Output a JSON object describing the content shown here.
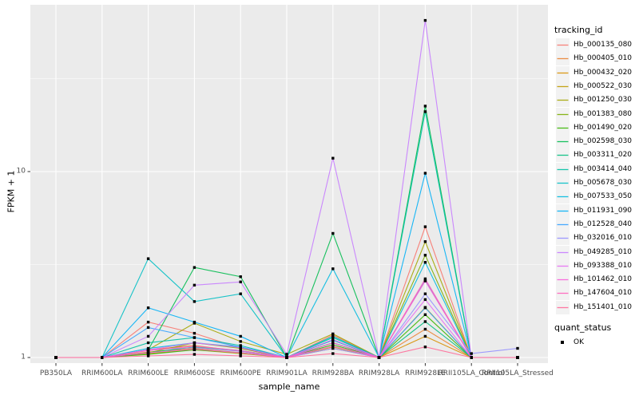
{
  "chart_data": {
    "type": "line",
    "title": "",
    "xlabel": "sample_name",
    "ylabel": "FPKM + 1",
    "y_scale": "log10",
    "ylim": [
      0.93,
      80
    ],
    "y_ticks": [
      {
        "label": "1",
        "value": 1
      },
      {
        "label": "10",
        "value": 10
      }
    ],
    "y_minor_gridlines": [
      3.162,
      31.62
    ],
    "grid": "on",
    "legend_position": "right",
    "categories": [
      "PB350LA",
      "RRIM600LA",
      "RRIM600LE",
      "RRIM600SE",
      "RRIM600PE",
      "RRIM901LA",
      "RRIM928BA",
      "RRIM928LA",
      "RRIM928LE",
      "RRII105LA_Control",
      "RRII105LA_Stressed"
    ],
    "series": [
      {
        "name": "Hb_000135_080",
        "color": "#F8766D",
        "values": [
          1,
          1,
          1.55,
          1.35,
          1.12,
          1,
          1.32,
          1,
          5.05,
          1,
          1
        ]
      },
      {
        "name": "Hb_000405_010",
        "color": "#EA8331",
        "values": [
          1,
          1,
          1.1,
          1.16,
          1.08,
          1,
          1.12,
          1,
          1.42,
          1,
          1
        ]
      },
      {
        "name": "Hb_000432_020",
        "color": "#D89000",
        "values": [
          1,
          1,
          1.07,
          1.12,
          1.06,
          1,
          1.2,
          1,
          1.3,
          1,
          1
        ]
      },
      {
        "name": "Hb_000522_030",
        "color": "#C09B00",
        "values": [
          1,
          1,
          1.05,
          1.1,
          1.05,
          1,
          1.14,
          1,
          1.86,
          1,
          1
        ]
      },
      {
        "name": "Hb_001250_030",
        "color": "#A3A500",
        "values": [
          1,
          1,
          1.1,
          1.53,
          1.22,
          1.04,
          1.34,
          1,
          4.2,
          1,
          1
        ]
      },
      {
        "name": "Hb_001383_080",
        "color": "#7CAE00",
        "values": [
          1,
          1,
          1.06,
          1.2,
          1.12,
          1,
          1.24,
          1,
          3.55,
          1,
          1
        ]
      },
      {
        "name": "Hb_001490_020",
        "color": "#39B600",
        "values": [
          1,
          1,
          1.04,
          1.1,
          1.06,
          1,
          1.17,
          1,
          1.7,
          1,
          1
        ]
      },
      {
        "name": "Hb_002598_030",
        "color": "#00BB4E",
        "values": [
          1,
          1,
          1.1,
          3.05,
          2.72,
          1,
          4.65,
          1,
          22.5,
          1,
          1
        ]
      },
      {
        "name": "Hb_003311_020",
        "color": "#00BF7D",
        "values": [
          1,
          1,
          1.06,
          1.14,
          1.09,
          1,
          1.2,
          1,
          1.56,
          1,
          1
        ]
      },
      {
        "name": "Hb_003414_040",
        "color": "#00C1A3",
        "values": [
          1,
          1,
          1.2,
          1.28,
          1.16,
          1,
          1.28,
          1,
          21.0,
          1,
          1
        ]
      },
      {
        "name": "Hb_005678_030",
        "color": "#00BFC4",
        "values": [
          1,
          1,
          3.4,
          2.0,
          2.2,
          1,
          1.3,
          1,
          2.6,
          1,
          1
        ]
      },
      {
        "name": "Hb_007533_050",
        "color": "#00BAE0",
        "values": [
          1,
          1,
          1.12,
          1.2,
          1.14,
          1,
          3.0,
          1,
          3.25,
          1,
          1
        ]
      },
      {
        "name": "Hb_011931_090",
        "color": "#00B0F6",
        "values": [
          1,
          1,
          1.85,
          1.55,
          1.3,
          1,
          1.24,
          1,
          9.8,
          1,
          1
        ]
      },
      {
        "name": "Hb_012528_040",
        "color": "#35A2FF",
        "values": [
          1,
          1,
          1.45,
          1.28,
          1.14,
          1,
          1.2,
          1,
          1.85,
          1,
          1
        ]
      },
      {
        "name": "Hb_032016_010",
        "color": "#9590FF",
        "values": [
          1,
          1,
          1.1,
          1.13,
          1.08,
          1,
          1.12,
          1,
          2.2,
          1.05,
          1.12
        ]
      },
      {
        "name": "Hb_049285_010",
        "color": "#C77CFF",
        "values": [
          1,
          1,
          1.3,
          2.45,
          2.55,
          1.04,
          11.8,
          1,
          65.0,
          1,
          1
        ]
      },
      {
        "name": "Hb_093388_010",
        "color": "#E76BF3",
        "values": [
          1,
          1,
          1.1,
          1.2,
          1.13,
          1,
          1.25,
          1,
          2.05,
          1,
          1
        ]
      },
      {
        "name": "Hb_101462_010",
        "color": "#FA62DB",
        "values": [
          1,
          1,
          1.06,
          1.11,
          1.06,
          1,
          1.15,
          1,
          2.58,
          1,
          1
        ]
      },
      {
        "name": "Hb_147604_010",
        "color": "#FF62BC",
        "values": [
          1,
          1,
          1.09,
          1.15,
          1.09,
          1,
          1.2,
          1,
          2.65,
          1,
          1
        ]
      },
      {
        "name": "Hb_151401_010",
        "color": "#FF6A98",
        "values": [
          1,
          1,
          1.02,
          1.04,
          1.02,
          1,
          1.05,
          1,
          1.14,
          1,
          1
        ]
      }
    ],
    "point_marker": {
      "shape": "square",
      "color": "#000000"
    }
  },
  "legend": {
    "tracking_title": "tracking_id",
    "quant_title": "quant_status",
    "quant_ok_label": "OK"
  },
  "style_colors": {
    "panel_bg": "#EBEBEB",
    "gridline": "#FFFFFF",
    "tick_mark": "#333333",
    "tick_text": "#4D4D4D",
    "legend_key_bg": "#F2F2F2"
  }
}
